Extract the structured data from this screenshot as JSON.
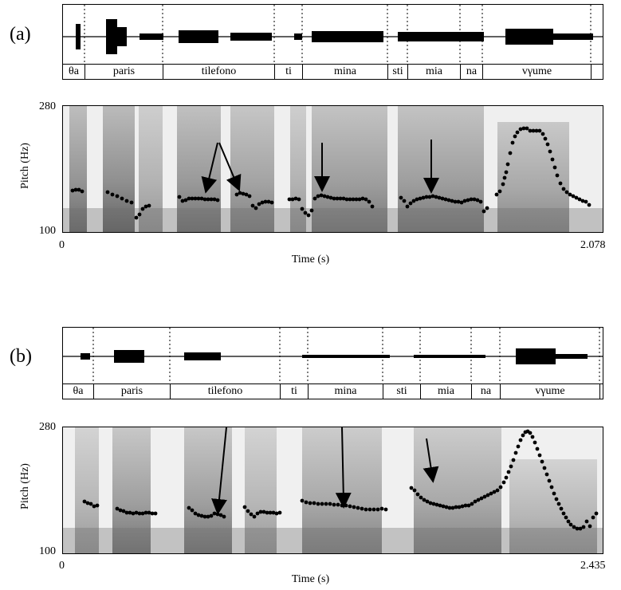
{
  "panels": [
    {
      "label": "(a)",
      "segments": [
        "θa",
        "paris",
        "tilefono",
        "ti",
        "mina",
        "sti",
        "mia",
        "na",
        "vγume"
      ],
      "y_axis": {
        "title": "Pitch (Hz)",
        "min": "100",
        "max": "280"
      },
      "x_axis": {
        "title": "Time (s)",
        "start": "0",
        "end": "2.078"
      }
    },
    {
      "label": "(b)",
      "segments": [
        "θa",
        "paris",
        "tilefono",
        "ti",
        "mina",
        "sti",
        "mia",
        "na",
        "vγume"
      ],
      "y_axis": {
        "title": "Pitch (Hz)",
        "min": "100",
        "max": "280"
      },
      "x_axis": {
        "title": "Time (s)",
        "start": "0",
        "end": "2.435"
      }
    }
  ]
}
